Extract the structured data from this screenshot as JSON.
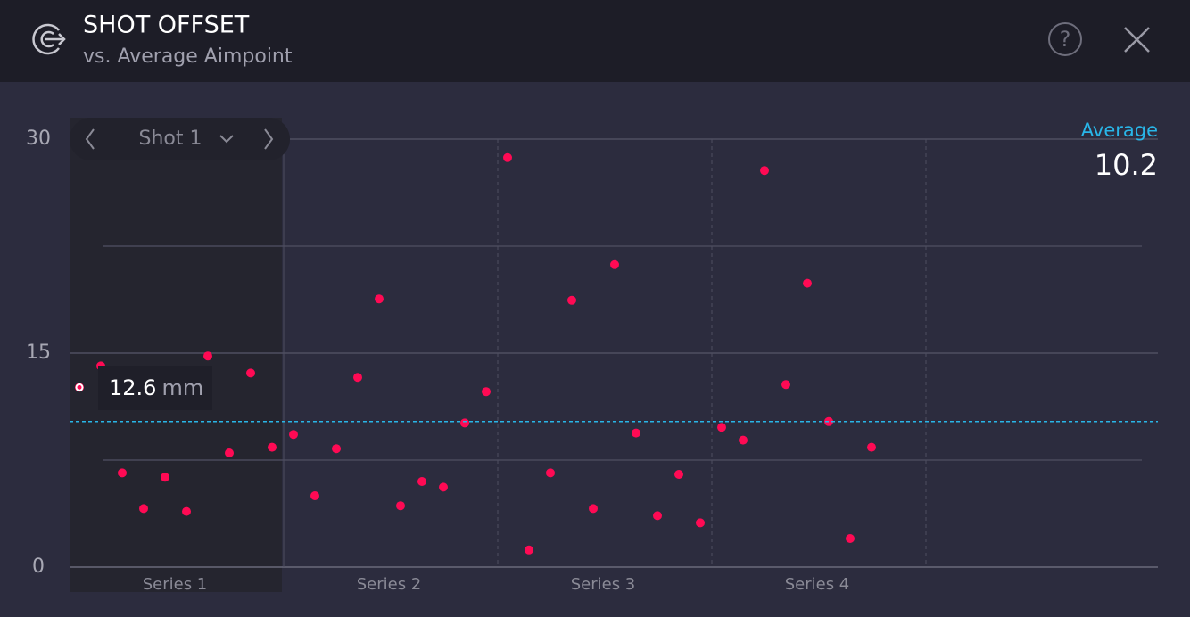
{
  "header": {
    "title": "SHOT OFFSET",
    "subtitle": "vs. Average Aimpoint"
  },
  "chart_data": {
    "type": "scatter",
    "selector": "Shot 1",
    "average_label": "Average",
    "average": 10.2,
    "average_color": "#29b6e8",
    "unit": "mm",
    "color": "#ff0a54",
    "ylim": [
      0,
      30
    ],
    "yticks": [
      0,
      15,
      30
    ],
    "minor_yticks": [
      7.5,
      22.5
    ],
    "grid": true,
    "series": [
      {
        "name": "Series 1",
        "values": [
          12.6,
          14.1,
          6.6,
          4.1,
          6.3,
          3.9,
          14.8,
          8.0,
          13.6,
          8.4
        ]
      },
      {
        "name": "Series 2",
        "values": [
          9.3,
          5.0,
          8.3,
          13.3,
          18.8,
          4.3,
          6.0,
          5.6,
          10.1,
          12.3
        ]
      },
      {
        "name": "Series 3",
        "values": [
          28.7,
          1.2,
          6.6,
          18.7,
          4.1,
          21.2,
          9.4,
          3.6,
          6.5,
          3.1
        ]
      },
      {
        "name": "Series 4",
        "values": [
          9.8,
          8.9,
          27.8,
          12.8,
          19.9,
          10.2,
          2.0,
          8.4
        ]
      }
    ]
  }
}
